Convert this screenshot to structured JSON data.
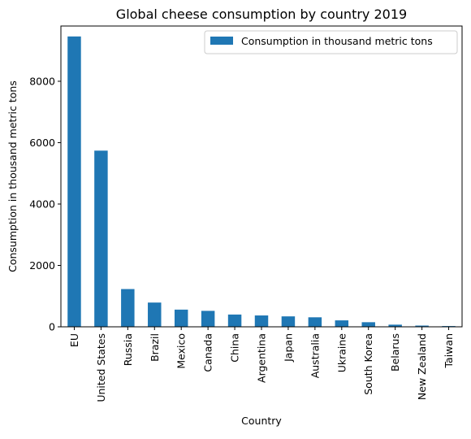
{
  "colors": {
    "bar": "#1f77b4",
    "axis": "#000000",
    "background": "#ffffff",
    "legend_border": "#cccccc"
  },
  "chart_data": {
    "type": "bar",
    "title": "Global cheese consumption by country 2019",
    "xlabel": "Country",
    "ylabel": "Consumption in thousand metric tons",
    "categories": [
      "EU",
      "United States",
      "Russia",
      "Brazil",
      "Mexico",
      "Canada",
      "China",
      "Argentina",
      "Japan",
      "Australia",
      "Ukraine",
      "South Korea",
      "Belarus",
      "New Zealand",
      "Taiwan"
    ],
    "series": [
      {
        "name": "Consumption in thousand metric tons",
        "values": [
          9460,
          5740,
          1230,
          790,
          560,
          520,
          400,
          370,
          340,
          310,
          210,
          150,
          70,
          40,
          25
        ]
      }
    ],
    "ylim": [
      0,
      9800
    ],
    "yticks": [
      0,
      2000,
      4000,
      6000,
      8000
    ],
    "legend": "top-right",
    "grid": false
  }
}
